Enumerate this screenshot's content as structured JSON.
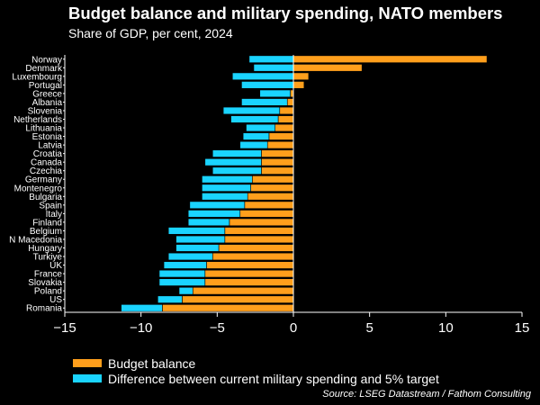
{
  "title": "Budget balance and military spending, NATO members",
  "subtitle": "Share of GDP, per cent, 2024",
  "source": "Source: LSEG Datastream / Fathom Consulting",
  "colors": {
    "budget": "#ff9f1c",
    "gap": "#1ad4ff",
    "outline": "#000000",
    "axis": "#ffffff"
  },
  "chart_data": {
    "type": "bar",
    "orientation": "horizontal",
    "categories": [
      "Norway",
      "Denmark",
      "Luxembourg",
      "Portugal",
      "Greece",
      "Albania",
      "Slovenia",
      "Netherlands",
      "Lithuania",
      "Estonia",
      "Latvia",
      "Croatia",
      "Canada",
      "Czechia",
      "Germany",
      "Montenegro",
      "Bulgaria",
      "Spain",
      "Italy",
      "Finland",
      "Belgium",
      "N Macedonia",
      "Hungary",
      "Turkiye",
      "UK",
      "France",
      "Slovakia",
      "Poland",
      "US",
      "Romania"
    ],
    "series": [
      {
        "name": "Budget balance",
        "values": [
          12.7,
          4.5,
          1.0,
          0.7,
          -0.2,
          -0.4,
          -0.9,
          -1.0,
          -1.2,
          -1.6,
          -1.7,
          -2.1,
          -2.1,
          -2.1,
          -2.7,
          -2.8,
          -3.0,
          -3.2,
          -3.5,
          -4.2,
          -4.5,
          -4.5,
          -4.9,
          -5.3,
          -5.7,
          -5.8,
          -5.8,
          -6.6,
          -7.3,
          -8.6
        ]
      },
      {
        "name": "Difference between current military spending and 5% target",
        "values": [
          -2.9,
          -2.6,
          -4.0,
          -3.4,
          -2.0,
          -3.0,
          -3.7,
          -3.1,
          -1.9,
          -1.7,
          -1.8,
          -3.2,
          -3.7,
          -3.2,
          -3.3,
          -3.2,
          -3.0,
          -3.6,
          -3.4,
          -2.7,
          -3.7,
          -3.2,
          -2.8,
          -2.9,
          -2.8,
          -3.0,
          -3.0,
          -0.9,
          -1.6,
          -2.7
        ]
      }
    ],
    "xlim": [
      -15,
      15
    ],
    "xticks": [
      -15,
      -10,
      -5,
      0,
      5,
      10,
      15
    ],
    "xlabel": "",
    "ylabel": "",
    "stacked": true,
    "legend_position": "bottom-left",
    "grid": false
  }
}
